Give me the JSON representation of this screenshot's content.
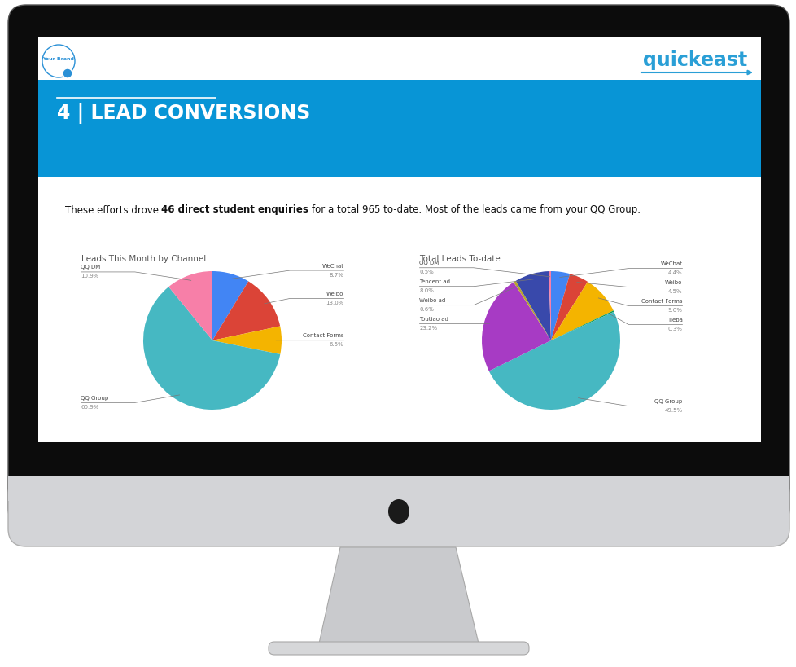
{
  "header": {
    "badge": "Your Brand",
    "logo": "quickeast",
    "heading": "4 | LEAD CONVERSIONS"
  },
  "summary": {
    "before": "These efforts drove",
    "bold": "46 direct student enquiries",
    "after": "for a total 965 to-date. Most of the leads came from your QQ Group."
  },
  "chart_data": [
    {
      "type": "pie",
      "title": "Leads This Month by Channel",
      "categories": [
        "WeChat",
        "Weibo",
        "Contact Forms",
        "QQ Group",
        "QQ DM"
      ],
      "values": [
        8.7,
        13.0,
        6.5,
        60.9,
        10.9
      ],
      "value_labels": [
        "8.7%",
        "13.0%",
        "6.5%",
        "60.9%",
        "10.9%"
      ],
      "colors": [
        "#4285f4",
        "#db4437",
        "#f4b400",
        "#46b8c2",
        "#f77fa8"
      ],
      "data_labels": true
    },
    {
      "type": "pie",
      "title": "Total Leads To-date",
      "categories": [
        "WeChat",
        "Weibo",
        "Contact Forms",
        "Tieba",
        "QQ Group",
        "Toutiao ad",
        "Weibo ad",
        "Tencent ad",
        "QQ DM"
      ],
      "values": [
        4.4,
        4.5,
        9.0,
        0.3,
        49.5,
        23.2,
        0.6,
        8.0,
        0.5
      ],
      "value_labels": [
        "4.4%",
        "4.5%",
        "9.0%",
        "0.3%",
        "49.5%",
        "23.2%",
        "0.6%",
        "8.0%",
        "0.5%"
      ],
      "colors": [
        "#4285f4",
        "#db4437",
        "#f4b400",
        "#0f9d58",
        "#46b8c2",
        "#a73bc4",
        "#b8a52c",
        "#3949ab",
        "#f77fa8"
      ],
      "data_labels": true
    }
  ]
}
